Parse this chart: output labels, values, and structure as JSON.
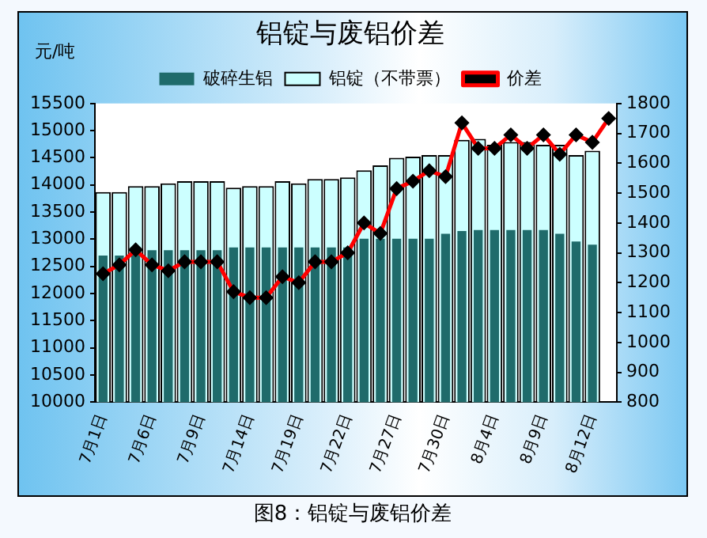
{
  "chart_data": {
    "type": "bar",
    "title": "铝锭与废铝价差",
    "ylabel": "元/吨",
    "annotations": [
      "图8：铝锭与废铝价差"
    ],
    "categories": [
      "7月1日",
      null,
      null,
      "7月6日",
      null,
      null,
      "7月9日",
      null,
      null,
      "7月14日",
      null,
      null,
      "7月19日",
      null,
      null,
      "7月22日",
      null,
      null,
      "7月27日",
      null,
      null,
      "7月30日",
      null,
      null,
      "8月4日",
      null,
      null,
      "8月9日",
      null,
      null,
      "8月12日",
      null
    ],
    "series": [
      {
        "name": "破碎生铝",
        "color": "#1f6b6b",
        "values": [
          12700,
          12700,
          12800,
          12800,
          12800,
          12800,
          12800,
          12800,
          12850,
          12850,
          12850,
          12850,
          12850,
          12850,
          12850,
          12850,
          13010,
          13010,
          13010,
          13010,
          13010,
          13100,
          13150,
          13170,
          13170,
          13170,
          13170,
          13170,
          13100,
          12960,
          12900,
          null
        ]
      },
      {
        "name": "铝锭（不带票）",
        "color": "#ccffff",
        "values": [
          13870,
          13870,
          13980,
          13980,
          14030,
          14070,
          14070,
          14070,
          13950,
          13980,
          13980,
          14070,
          14030,
          14110,
          14110,
          14140,
          14270,
          14360,
          14500,
          14520,
          14550,
          14550,
          14830,
          14850,
          14740,
          14790,
          14790,
          14740,
          14740,
          14550,
          14630,
          null
        ]
      },
      {
        "name": "价差",
        "type": "line",
        "axis": "y2",
        "color": "#ff0000",
        "marker": "diamond",
        "values": [
          1230,
          1260,
          1310,
          1260,
          1240,
          1270,
          1270,
          1270,
          1170,
          1150,
          1150,
          1220,
          1200,
          1270,
          1270,
          1300,
          1400,
          1365,
          1515,
          1540,
          1575,
          1555,
          1735,
          1650,
          1650,
          1695,
          1650,
          1695,
          1630,
          1695,
          1670,
          1750
        ]
      }
    ],
    "ylim": [
      10000,
      15500
    ],
    "yticks": [
      10000,
      10500,
      11000,
      11500,
      12000,
      12500,
      13000,
      13500,
      14000,
      14500,
      15000,
      15500
    ],
    "y2lim": [
      800,
      1800
    ],
    "y2ticks": [
      800,
      900,
      1000,
      1100,
      1200,
      1300,
      1400,
      1500,
      1600,
      1700,
      1800
    ],
    "grid": false,
    "legend": "top"
  }
}
